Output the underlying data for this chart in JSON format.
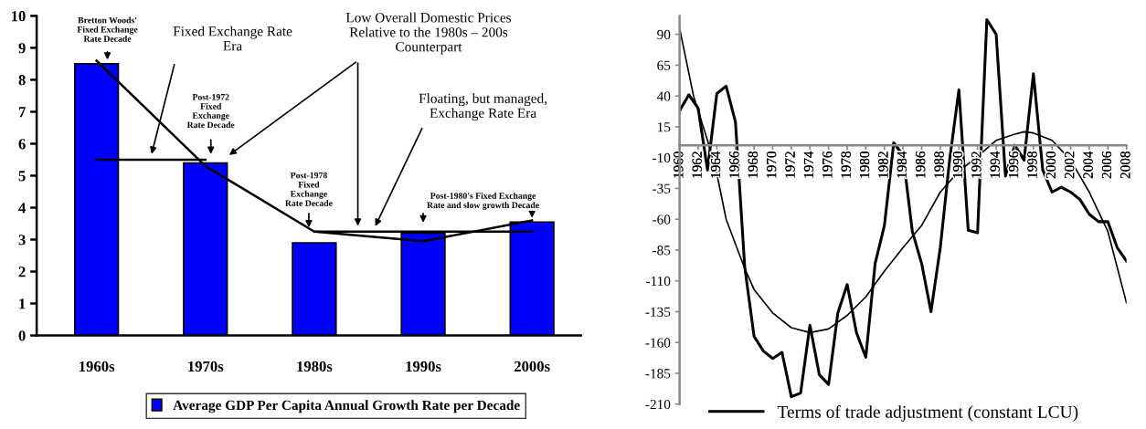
{
  "chart_data": [
    {
      "type": "bar",
      "categories": [
        "1960s",
        "1970s",
        "1980s",
        "1990s",
        "2000s"
      ],
      "series": [
        {
          "name": "Average GDP Per Capita Annual Growth Rate per Decade",
          "color": "#0000ff",
          "values": [
            8.5,
            5.4,
            2.9,
            3.2,
            3.55
          ]
        },
        {
          "type": "line",
          "color": "#000000",
          "values": [
            8.6,
            5.3,
            3.25,
            2.95,
            3.6
          ]
        },
        {
          "type": "line",
          "color": "#000000",
          "values": [
            5.5,
            5.5,
            null,
            null,
            null
          ]
        },
        {
          "type": "line",
          "color": "#000000",
          "values": [
            null,
            null,
            3.25,
            3.25,
            3.25
          ]
        }
      ],
      "ylim": [
        0,
        10
      ],
      "yticks": [
        0,
        1,
        2,
        3,
        4,
        5,
        6,
        7,
        8,
        9,
        10
      ],
      "grid": false,
      "legend": "bottom",
      "annotations": [
        "Bretton Woods'\nFixed Exchange\nRate Decade",
        "Fixed Exchange Rate\nEra",
        "Post-1972\nFixed\nExchange\nRate Decade",
        "Low Overall Domestic Prices\nRelative to the 1980s – 200s\nCounterpart",
        "Floating, but managed,\nExchange Rate Era",
        "Post-1978\nFixed\nExchange\nRate Decade",
        "Post-1980's Fixed Exchange\nRate and slow growth Decade"
      ]
    },
    {
      "type": "line",
      "series": [
        {
          "name": "Terms of trade adjustment (constant LCU)",
          "color": "#000000",
          "x": [
            1960,
            1961,
            1962,
            1963,
            1964,
            1965,
            1966,
            1967,
            1968,
            1969,
            1970,
            1971,
            1972,
            1973,
            1974,
            1975,
            1976,
            1977,
            1978,
            1979,
            1980,
            1981,
            1982,
            1983,
            1984,
            1985,
            1986,
            1987,
            1988,
            1989,
            1990,
            1991,
            1992,
            1993,
            1994,
            1995,
            1996,
            1997,
            1998,
            1999,
            2000,
            2001,
            2002,
            2003,
            2004,
            2005,
            2006,
            2007,
            2008
          ],
          "values": [
            28,
            41,
            30,
            -20,
            42,
            48,
            19,
            -99,
            -155,
            -167,
            -173,
            -168,
            -204,
            -201,
            -146,
            -186,
            -194,
            -136,
            -113,
            -152,
            -172,
            -96,
            -65,
            2,
            -8,
            -70,
            -96,
            -135,
            -83,
            -12,
            45,
            -69,
            -71,
            102,
            90,
            -25,
            0,
            -12,
            58,
            -20,
            -38,
            -34,
            -38,
            -44,
            -56,
            -62,
            -62,
            -83,
            -94
          ]
        },
        {
          "color": "#000000",
          "x": [
            1960,
            1961.5,
            1963,
            1964,
            1965,
            1966,
            1967,
            1968,
            1970,
            1972,
            1974,
            1976,
            1978,
            1980,
            1982,
            1984,
            1986,
            1988,
            1990,
            1992,
            1994,
            1996,
            1997,
            1998,
            2000,
            2002,
            2004,
            2005,
            2006,
            2008
          ],
          "values": [
            95,
            40,
            4,
            -23,
            -60,
            -80,
            -100,
            -117,
            -136,
            -148,
            -152,
            -149,
            -138,
            -123,
            -102,
            -83,
            -65,
            -38,
            -21,
            -9,
            4,
            9,
            11,
            10,
            4,
            -12,
            -38,
            -54,
            -70,
            -128
          ]
        }
      ],
      "xlim": [
        1960,
        2008
      ],
      "xticks": [
        1960,
        1962,
        1964,
        1966,
        1968,
        1970,
        1972,
        1974,
        1976,
        1978,
        1980,
        1982,
        1984,
        1986,
        1988,
        1990,
        1992,
        1994,
        1996,
        1998,
        2000,
        2002,
        2004,
        2006,
        2008
      ],
      "ylim": [
        -210,
        105
      ],
      "yticks": [
        -210,
        -185,
        -160,
        -135,
        -110,
        -85,
        -60,
        -35,
        -10,
        15,
        40,
        65,
        90
      ],
      "grid": false,
      "legend": "bottom",
      "marker": "none",
      "line_style": "solid"
    }
  ]
}
